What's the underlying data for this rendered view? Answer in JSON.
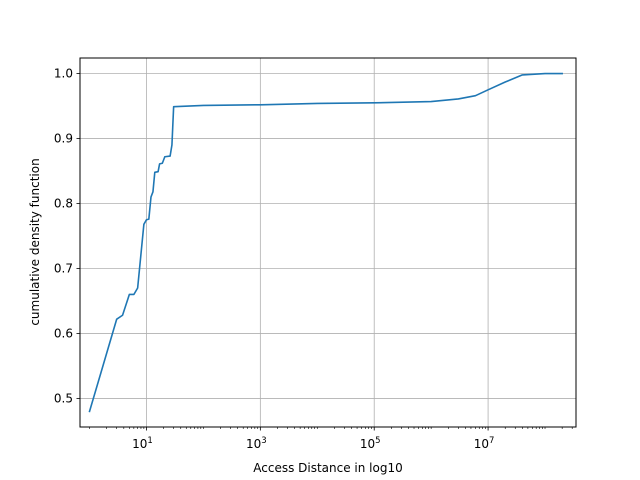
{
  "chart_data": {
    "type": "line",
    "title": "",
    "xlabel": "Access Distance in log10",
    "ylabel": "cumulative density function",
    "x_scale": "log10",
    "xlim": [
      0.68,
      350000000.0
    ],
    "ylim": [
      0.456,
      1.024
    ],
    "grid": true,
    "legend": "none",
    "x_ticks": [
      {
        "value": 10,
        "base": "10",
        "exponent": "1"
      },
      {
        "value": 1000,
        "base": "10",
        "exponent": "3"
      },
      {
        "value": 100000,
        "base": "10",
        "exponent": "5"
      },
      {
        "value": 10000000,
        "base": "10",
        "exponent": "7"
      }
    ],
    "y_ticks": [
      {
        "value": 0.5,
        "label": "0.5"
      },
      {
        "value": 0.6,
        "label": "0.6"
      },
      {
        "value": 0.7,
        "label": "0.7"
      },
      {
        "value": 0.8,
        "label": "0.8"
      },
      {
        "value": 0.9,
        "label": "0.9"
      },
      {
        "value": 1.0,
        "label": "1.0"
      }
    ],
    "series": [
      {
        "color": "#1f77b4",
        "points": [
          [
            1,
            0.48
          ],
          [
            3,
            0.622
          ],
          [
            3.8,
            0.628
          ],
          [
            5,
            0.66
          ],
          [
            6,
            0.66
          ],
          [
            7,
            0.67
          ],
          [
            9,
            0.768
          ],
          [
            10,
            0.775
          ],
          [
            11,
            0.776
          ],
          [
            12,
            0.81
          ],
          [
            13,
            0.818
          ],
          [
            14,
            0.848
          ],
          [
            16,
            0.849
          ],
          [
            17,
            0.861
          ],
          [
            19,
            0.862
          ],
          [
            21,
            0.872
          ],
          [
            26,
            0.873
          ],
          [
            28,
            0.89
          ],
          [
            30,
            0.949
          ],
          [
            100,
            0.951
          ],
          [
            1000,
            0.952
          ],
          [
            10000,
            0.954
          ],
          [
            100000,
            0.955
          ],
          [
            1000000,
            0.957
          ],
          [
            3000000,
            0.961
          ],
          [
            6000000,
            0.966
          ],
          [
            10000000,
            0.975
          ],
          [
            20000000,
            0.987
          ],
          [
            40000000,
            0.998
          ],
          [
            100000000,
            1.0
          ],
          [
            200000000,
            1.0
          ]
        ]
      }
    ]
  }
}
